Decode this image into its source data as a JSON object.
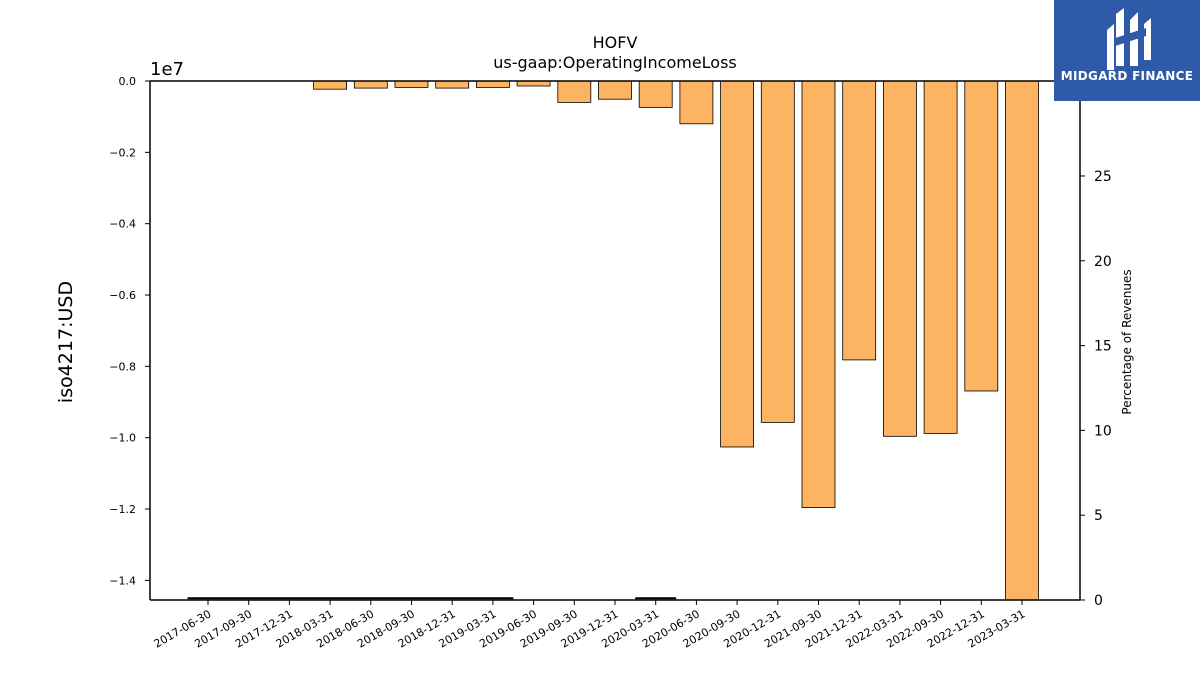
{
  "chart_data": {
    "type": "bar",
    "title": "HOFV",
    "subtitle": "us-gaap:OperatingIncomeLoss",
    "ylabel": "iso4217:USD",
    "y_offset_label": "1e7",
    "y2label": "Percentage of Revenues",
    "categories": [
      "2017-06-30",
      "2017-09-30",
      "2017-12-31",
      "2018-03-31",
      "2018-06-30",
      "2018-09-30",
      "2018-12-31",
      "2019-03-31",
      "2019-06-30",
      "2019-09-30",
      "2019-12-31",
      "2020-03-31",
      "2020-06-30",
      "2020-09-30",
      "2020-12-31",
      "2021-09-30",
      "2021-12-31",
      "2022-03-31",
      "2022-09-30",
      "2022-12-31",
      "2023-03-31"
    ],
    "values": [
      0,
      0,
      0,
      -230000,
      -200000,
      -180000,
      -200000,
      -180000,
      -140000,
      -600000,
      -510000,
      -740000,
      -1200000,
      -10260000,
      -9570000,
      -11960000,
      -7820000,
      -9960000,
      -9880000,
      -8690000,
      -14550000
    ],
    "percent_of_revenue": [
      0.1,
      0.1,
      0.1,
      0.1,
      0.1,
      0.1,
      0.1,
      0.1,
      null,
      null,
      null,
      0.1,
      null,
      null,
      null,
      null,
      null,
      null,
      null,
      null,
      null
    ],
    "ylim": [
      -14550000,
      0
    ],
    "y_ticks": [
      0,
      -2000000,
      -4000000,
      -6000000,
      -8000000,
      -10000000,
      -12000000,
      -14000000
    ],
    "y_tick_labels": [
      "0.0",
      "−0.2",
      "−0.4",
      "−0.6",
      "−0.8",
      "−1.0",
      "−1.2",
      "−1.4"
    ],
    "y2lim": [
      0,
      30.6
    ],
    "y2_ticks": [
      0,
      5,
      10,
      15,
      20,
      25
    ],
    "y2_tick_labels": [
      "0",
      "5",
      "10",
      "15",
      "20",
      "25"
    ],
    "grid": false,
    "bar_color": "#fdb462",
    "bar_edge_color": "#000000",
    "line_color": "#000000"
  },
  "logo": {
    "text": "MIDGARD FINANCE",
    "icon": "midgard-logo-icon",
    "color": "#2f5aa8"
  }
}
